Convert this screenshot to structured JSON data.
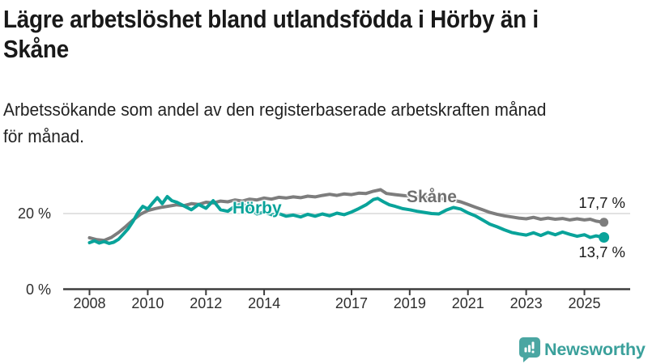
{
  "header": {
    "title_lines": [
      "Lägre arbetslöshet bland utlandsfödda i Hörby än i",
      "Skåne"
    ],
    "subtitle_lines": [
      "Arbetssökande som andel av den registerbaserade arbetskraften månad",
      "för månad."
    ]
  },
  "chart_data": {
    "type": "line",
    "x_ticks": [
      "2008",
      "2010",
      "2012",
      "2014",
      "2017",
      "2019",
      "2021",
      "2023",
      "2025"
    ],
    "y_axis": [
      {
        "label": "20 %",
        "value": 20
      },
      {
        "label": "0 %",
        "value": 0
      }
    ],
    "gridline_value": 20,
    "unit": "%",
    "xlim": [
      2007.3,
      2026.5
    ],
    "ylim": [
      0,
      30
    ],
    "legend_position": "inline-annotations",
    "grid": "y-20-only",
    "series": [
      {
        "name": "Skåne",
        "color": "#7d7d7d",
        "end_label": "17,7 %",
        "end_value": 17.7,
        "points": [
          [
            2008.0,
            13.6
          ],
          [
            2008.25,
            13.1
          ],
          [
            2008.5,
            12.9
          ],
          [
            2008.75,
            13.7
          ],
          [
            2009.0,
            15.0
          ],
          [
            2009.25,
            16.6
          ],
          [
            2009.5,
            18.3
          ],
          [
            2009.75,
            19.8
          ],
          [
            2010.0,
            20.8
          ],
          [
            2010.25,
            21.3
          ],
          [
            2010.5,
            21.7
          ],
          [
            2010.75,
            22.0
          ],
          [
            2011.0,
            22.3
          ],
          [
            2011.25,
            22.1
          ],
          [
            2011.5,
            22.6
          ],
          [
            2011.75,
            22.4
          ],
          [
            2012.0,
            23.0
          ],
          [
            2012.25,
            22.8
          ],
          [
            2012.5,
            23.3
          ],
          [
            2012.75,
            23.1
          ],
          [
            2013.0,
            23.6
          ],
          [
            2013.25,
            23.3
          ],
          [
            2013.5,
            23.8
          ],
          [
            2013.75,
            23.6
          ],
          [
            2014.0,
            24.1
          ],
          [
            2014.25,
            23.8
          ],
          [
            2014.5,
            24.3
          ],
          [
            2014.75,
            24.1
          ],
          [
            2015.0,
            24.4
          ],
          [
            2015.25,
            24.2
          ],
          [
            2015.5,
            24.6
          ],
          [
            2015.75,
            24.4
          ],
          [
            2016.0,
            24.8
          ],
          [
            2016.25,
            25.1
          ],
          [
            2016.5,
            24.8
          ],
          [
            2016.75,
            25.2
          ],
          [
            2017.0,
            25.0
          ],
          [
            2017.25,
            25.4
          ],
          [
            2017.5,
            25.3
          ],
          [
            2017.75,
            25.9
          ],
          [
            2018.0,
            26.3
          ],
          [
            2018.2,
            25.3
          ],
          [
            2018.5,
            25.0
          ],
          [
            2018.75,
            24.8
          ],
          [
            2019.0,
            24.6
          ],
          [
            2019.25,
            24.4
          ],
          [
            2019.5,
            24.3
          ],
          [
            2019.75,
            24.1
          ],
          [
            2020.0,
            24.0
          ],
          [
            2020.25,
            23.8
          ],
          [
            2020.5,
            23.5
          ],
          [
            2020.75,
            23.1
          ],
          [
            2021.0,
            22.4
          ],
          [
            2021.25,
            21.7
          ],
          [
            2021.5,
            21.0
          ],
          [
            2021.75,
            20.3
          ],
          [
            2022.0,
            19.8
          ],
          [
            2022.25,
            19.4
          ],
          [
            2022.5,
            19.1
          ],
          [
            2022.75,
            18.8
          ],
          [
            2023.0,
            18.6
          ],
          [
            2023.25,
            19.0
          ],
          [
            2023.5,
            18.5
          ],
          [
            2023.75,
            18.8
          ],
          [
            2024.0,
            18.5
          ],
          [
            2024.25,
            18.7
          ],
          [
            2024.5,
            18.3
          ],
          [
            2024.75,
            18.6
          ],
          [
            2025.0,
            18.3
          ],
          [
            2025.2,
            18.5
          ],
          [
            2025.4,
            18.0
          ],
          [
            2025.67,
            17.7
          ]
        ]
      },
      {
        "name": "Hörby",
        "color": "#09a39a",
        "end_label": "13,7 %",
        "end_value": 13.7,
        "points": [
          [
            2008.0,
            12.3
          ],
          [
            2008.17,
            12.8
          ],
          [
            2008.33,
            12.2
          ],
          [
            2008.5,
            12.6
          ],
          [
            2008.67,
            12.1
          ],
          [
            2008.83,
            12.4
          ],
          [
            2009.0,
            13.2
          ],
          [
            2009.17,
            14.6
          ],
          [
            2009.33,
            16.0
          ],
          [
            2009.5,
            18.0
          ],
          [
            2009.67,
            20.3
          ],
          [
            2009.83,
            21.9
          ],
          [
            2010.0,
            21.2
          ],
          [
            2010.17,
            22.8
          ],
          [
            2010.33,
            24.2
          ],
          [
            2010.5,
            22.6
          ],
          [
            2010.67,
            24.5
          ],
          [
            2010.83,
            23.4
          ],
          [
            2011.0,
            23.0
          ],
          [
            2011.25,
            22.0
          ],
          [
            2011.5,
            21.0
          ],
          [
            2011.75,
            22.4
          ],
          [
            2012.0,
            21.4
          ],
          [
            2012.25,
            23.4
          ],
          [
            2012.5,
            21.0
          ],
          [
            2012.75,
            20.6
          ],
          [
            2013.0,
            22.0
          ],
          [
            2013.25,
            22.6
          ],
          [
            2013.5,
            21.2
          ],
          [
            2013.75,
            19.9
          ],
          [
            2014.0,
            20.4
          ],
          [
            2014.25,
            19.7
          ],
          [
            2014.5,
            20.0
          ],
          [
            2014.75,
            19.3
          ],
          [
            2015.0,
            19.6
          ],
          [
            2015.25,
            19.1
          ],
          [
            2015.5,
            19.8
          ],
          [
            2015.75,
            19.3
          ],
          [
            2016.0,
            19.9
          ],
          [
            2016.25,
            19.4
          ],
          [
            2016.5,
            20.1
          ],
          [
            2016.75,
            19.7
          ],
          [
            2017.0,
            20.4
          ],
          [
            2017.25,
            21.3
          ],
          [
            2017.5,
            22.3
          ],
          [
            2017.75,
            23.7
          ],
          [
            2017.9,
            24.0
          ],
          [
            2018.1,
            23.1
          ],
          [
            2018.3,
            22.3
          ],
          [
            2018.5,
            21.9
          ],
          [
            2018.75,
            21.3
          ],
          [
            2019.0,
            21.0
          ],
          [
            2019.25,
            20.6
          ],
          [
            2019.5,
            20.3
          ],
          [
            2019.75,
            20.0
          ],
          [
            2020.0,
            19.9
          ],
          [
            2020.25,
            20.9
          ],
          [
            2020.5,
            21.6
          ],
          [
            2020.75,
            21.2
          ],
          [
            2021.0,
            20.2
          ],
          [
            2021.25,
            19.4
          ],
          [
            2021.5,
            18.3
          ],
          [
            2021.75,
            17.2
          ],
          [
            2022.0,
            16.5
          ],
          [
            2022.25,
            15.7
          ],
          [
            2022.5,
            15.0
          ],
          [
            2022.75,
            14.6
          ],
          [
            2023.0,
            14.3
          ],
          [
            2023.25,
            14.9
          ],
          [
            2023.5,
            14.2
          ],
          [
            2023.75,
            15.0
          ],
          [
            2024.0,
            14.4
          ],
          [
            2024.25,
            15.1
          ],
          [
            2024.5,
            14.5
          ],
          [
            2024.75,
            14.0
          ],
          [
            2025.0,
            14.4
          ],
          [
            2025.2,
            13.7
          ],
          [
            2025.4,
            14.1
          ],
          [
            2025.67,
            13.7
          ]
        ]
      }
    ],
    "colors": {
      "gridline": "#d9d9d9",
      "axis": "#3d3d3d",
      "tick_text": "#2e2e2e"
    }
  },
  "logo": {
    "text": "Newsworthy",
    "icon": "newsworthy-bar-chart-bubble-icon",
    "icon_color": "#4aa6a2",
    "text_color": "#3aa09b"
  }
}
